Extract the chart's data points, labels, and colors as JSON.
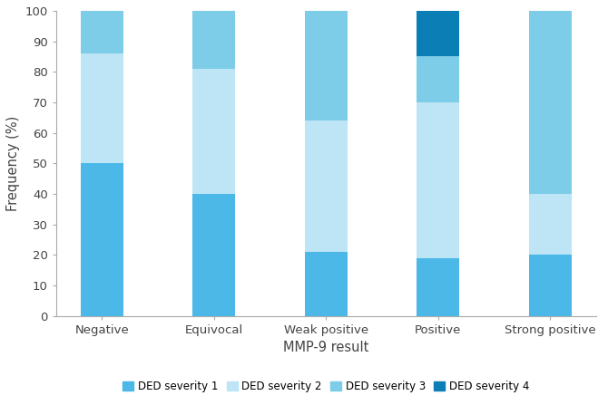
{
  "categories": [
    "Negative",
    "Equivocal",
    "Weak positive",
    "Positive",
    "Strong positive"
  ],
  "series": {
    "DED severity 1": [
      50,
      40,
      21,
      19,
      20
    ],
    "DED severity 2": [
      36,
      41,
      43,
      51,
      20
    ],
    "DED severity 3": [
      14,
      19,
      36,
      15,
      60
    ],
    "DED severity 4": [
      0,
      0,
      0,
      15,
      0
    ]
  },
  "colors": {
    "DED severity 1": "#4BB8E8",
    "DED severity 2": "#BDE5F5",
    "DED severity 3": "#7DCCE8",
    "DED severity 4": "#0B7FB5"
  },
  "ylabel": "Frequency (%)",
  "xlabel": "MMP-9 result",
  "ylim": [
    0,
    100
  ],
  "yticks": [
    0,
    10,
    20,
    30,
    40,
    50,
    60,
    70,
    80,
    90,
    100
  ],
  "bar_width": 0.38,
  "legend_order": [
    "DED severity 1",
    "DED severity 2",
    "DED severity 3",
    "DED severity 4"
  ]
}
